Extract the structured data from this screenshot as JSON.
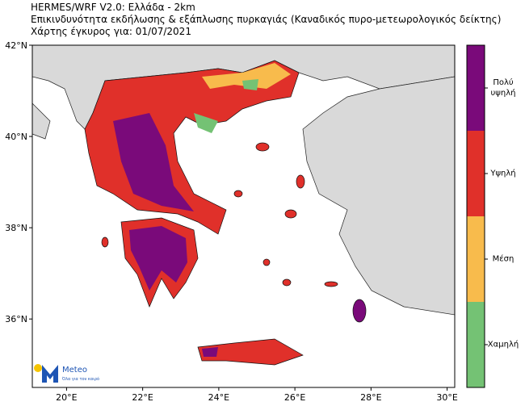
{
  "header": {
    "lines": [
      "HERMES/WRF V2.0: Ελλάδα - 2km",
      "Επικινδυνότητα εκδήλωσης & εξάπλωσης πυρκαγιάς (Καναδικός πυρο-μετεωρολογικός δείκτης)",
      "Χάρτης έγκυρος για: 01/07/2021"
    ]
  },
  "map": {
    "xlim": [
      19.1,
      30.2
    ],
    "ylim": [
      34.5,
      42
    ],
    "xticks": [
      {
        "value": 20,
        "label": "20°E"
      },
      {
        "value": 22,
        "label": "22°E"
      },
      {
        "value": 24,
        "label": "24°E"
      },
      {
        "value": 26,
        "label": "26°E"
      },
      {
        "value": 28,
        "label": "28°E"
      },
      {
        "value": 30,
        "label": "30°E"
      }
    ],
    "yticks": [
      {
        "value": 42,
        "label": "42°N"
      },
      {
        "value": 40,
        "label": "40°N"
      },
      {
        "value": 38,
        "label": "38°N"
      },
      {
        "value": 36,
        "label": "36°N"
      }
    ]
  },
  "legend": {
    "classes": [
      {
        "label": "Πολύ υψηλή",
        "color": "#7a0a7a"
      },
      {
        "label": "Υψηλή",
        "color": "#e0302a"
      },
      {
        "label": "Μέση",
        "color": "#f8bb4c"
      },
      {
        "label": "Χαμηλή",
        "color": "#74c274"
      }
    ]
  },
  "logo": {
    "name": "Meteo",
    "tagline": "Όλα για τον καιρό"
  }
}
